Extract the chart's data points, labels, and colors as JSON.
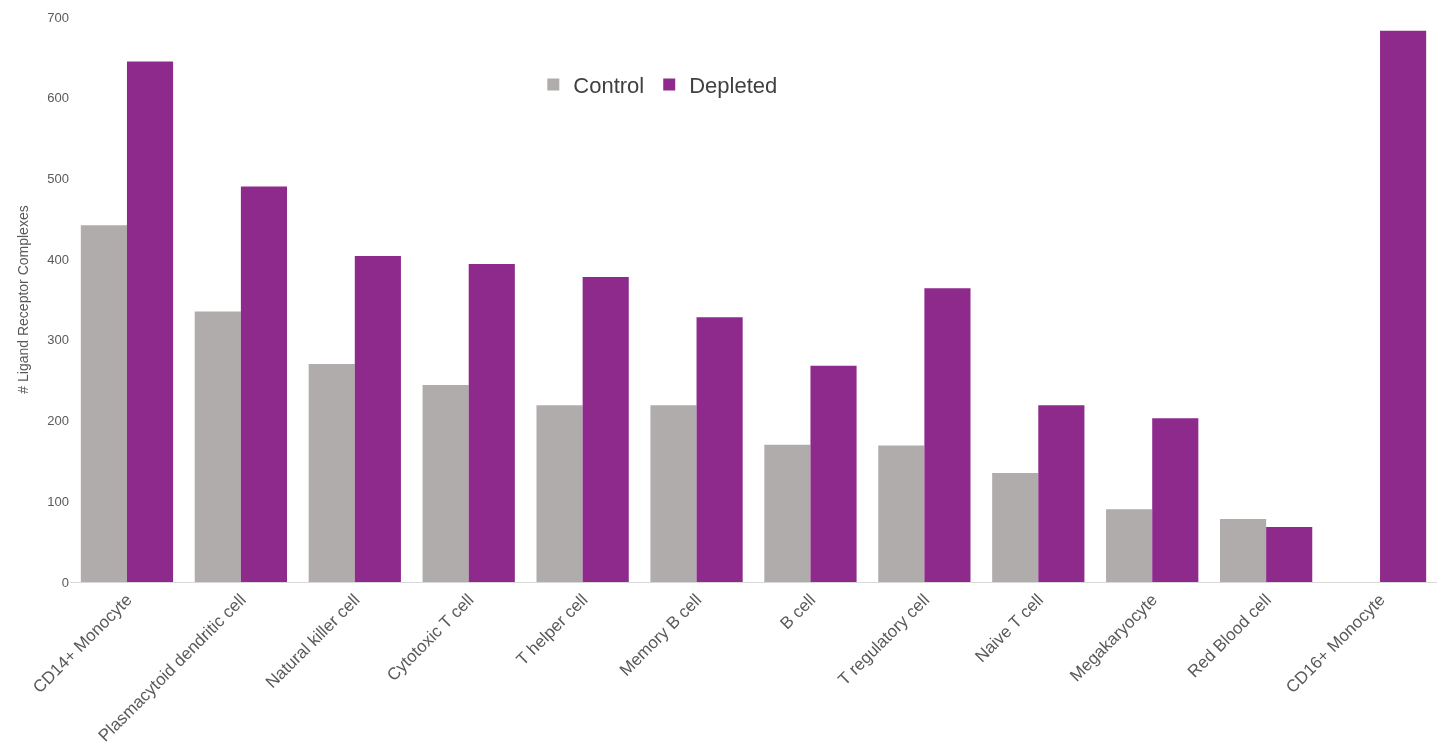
{
  "chart_data": {
    "type": "bar",
    "ylabel": "# Ligand Receptor Complexes",
    "categories": [
      "CD14+ Monocyte",
      "Plasmacytoid dendritic cell",
      "Natural killer cell",
      "Cytotoxic T cell",
      "T helper cell",
      "Memory B cell",
      "B cell",
      "T regulatory cell",
      "Naive T cell",
      "Megakaryocyte",
      "Red Blood cell",
      "CD16+ Monocyte"
    ],
    "series": [
      {
        "name": "Control",
        "color": "#b0acab",
        "values": [
          442,
          335,
          270,
          244,
          219,
          219,
          170,
          169,
          135,
          90,
          78,
          0
        ]
      },
      {
        "name": "Depleted",
        "color": "#8e2a8c",
        "values": [
          645,
          490,
          404,
          394,
          378,
          328,
          268,
          364,
          219,
          203,
          68,
          683
        ]
      }
    ],
    "ylim": [
      0,
      700
    ],
    "yticks": [
      0,
      100,
      200,
      300,
      400,
      500,
      600,
      700
    ],
    "grid": false,
    "legend": "top"
  }
}
